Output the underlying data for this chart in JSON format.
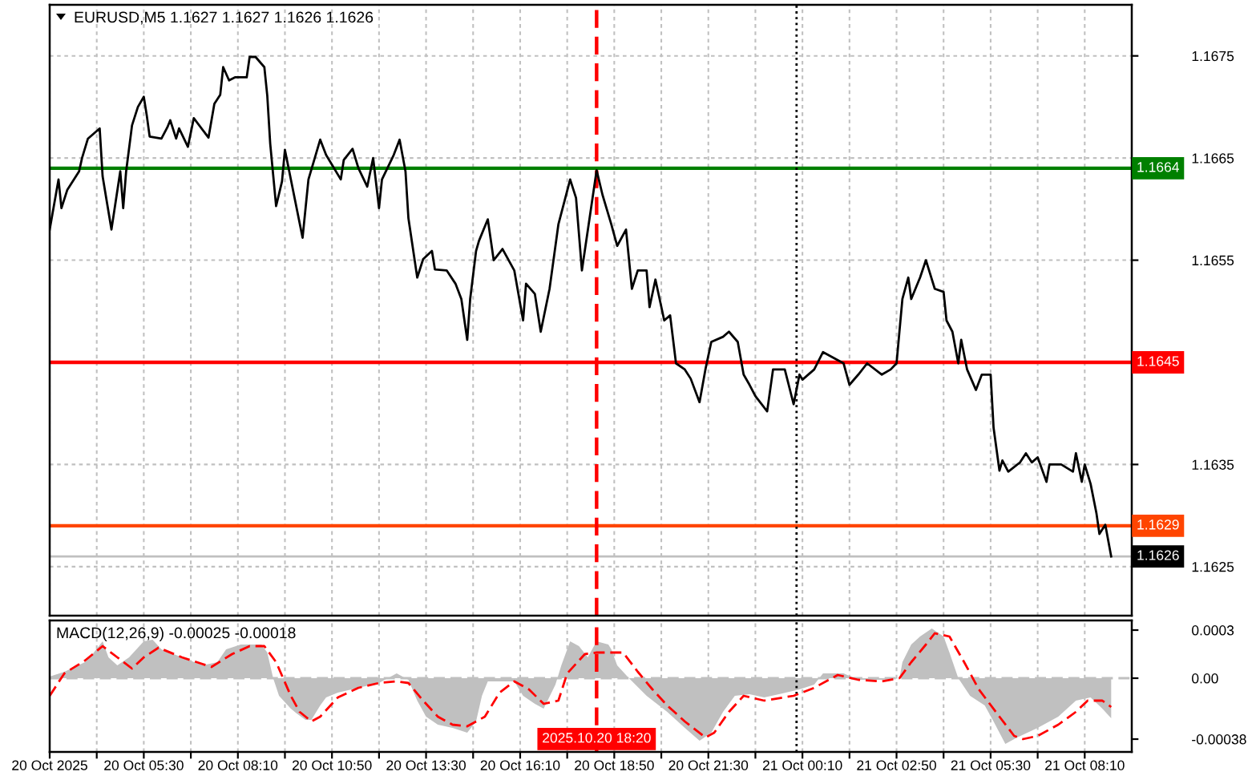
{
  "chart_data": [
    {
      "type": "line",
      "title": "EURUSD,M5 1.1627 1.1627 1.1626 1.1626",
      "x": [
        "2025-10-20T02:50",
        "2025-10-20T03:05",
        "2025-10-20T03:10",
        "2025-10-20T03:20",
        "2025-10-20T03:40",
        "2025-10-20T03:45",
        "2025-10-20T03:55",
        "2025-10-20T04:15",
        "2025-10-20T04:20",
        "2025-10-20T04:35",
        "2025-10-20T04:50",
        "2025-10-20T04:55",
        "2025-10-20T05:00",
        "2025-10-20T05:10",
        "2025-10-20T05:20",
        "2025-10-20T05:30",
        "2025-10-20T05:35",
        "2025-10-20T05:40",
        "2025-10-20T06:00",
        "2025-10-20T06:10",
        "2025-10-20T06:15",
        "2025-10-20T06:25",
        "2025-10-20T06:30",
        "2025-10-20T06:45",
        "2025-10-20T06:55",
        "2025-10-20T07:20",
        "2025-10-20T07:30",
        "2025-10-20T07:40",
        "2025-10-20T07:45",
        "2025-10-20T07:55",
        "2025-10-20T08:05",
        "2025-10-20T08:25",
        "2025-10-20T08:30",
        "2025-10-20T08:40",
        "2025-10-20T08:55",
        "2025-10-20T09:00",
        "2025-10-20T09:05",
        "2025-10-20T09:15",
        "2025-10-20T09:25",
        "2025-10-20T09:30",
        "2025-10-20T10:00",
        "2025-10-20T10:10",
        "2025-10-20T10:30",
        "2025-10-20T10:40",
        "2025-10-20T11:05",
        "2025-10-20T11:10",
        "2025-10-20T11:25",
        "2025-10-20T11:35",
        "2025-10-20T11:50",
        "2025-10-20T12:00",
        "2025-10-20T12:10",
        "2025-10-20T12:15",
        "2025-10-20T12:35",
        "2025-10-20T12:45",
        "2025-10-20T12:55",
        "2025-10-20T13:00",
        "2025-10-20T13:15",
        "2025-10-20T13:25",
        "2025-10-20T13:40",
        "2025-10-20T13:45",
        "2025-10-20T14:05",
        "2025-10-20T14:20",
        "2025-10-20T14:30",
        "2025-10-20T14:40",
        "2025-10-20T14:45",
        "2025-10-20T14:55",
        "2025-10-20T15:00",
        "2025-10-20T15:15",
        "2025-10-20T15:25",
        "2025-10-20T15:40",
        "2025-10-20T16:00",
        "2025-10-20T16:15",
        "2025-10-20T16:20",
        "2025-10-20T16:35",
        "2025-10-20T16:45",
        "2025-10-20T17:00",
        "2025-10-20T17:15",
        "2025-10-20T17:35",
        "2025-10-20T17:45",
        "2025-10-20T17:55",
        "2025-10-20T18:20",
        "2025-10-20T18:30",
        "2025-10-20T18:45",
        "2025-10-20T18:55",
        "2025-10-20T19:10",
        "2025-10-20T19:20",
        "2025-10-20T19:30",
        "2025-10-20T19:45",
        "2025-10-20T19:50",
        "2025-10-20T20:00",
        "2025-10-20T20:15",
        "2025-10-20T20:25",
        "2025-10-20T20:35",
        "2025-10-20T20:50",
        "2025-10-20T21:00",
        "2025-10-20T21:15",
        "2025-10-20T21:25",
        "2025-10-20T21:35",
        "2025-10-20T21:55",
        "2025-10-20T22:05",
        "2025-10-20T22:20",
        "2025-10-20T22:30",
        "2025-10-20T22:40",
        "2025-10-20T22:50",
        "2025-10-20T23:10",
        "2025-10-20T23:20",
        "2025-10-20T23:40",
        "2025-10-20T23:55",
        "2025-10-21T00:05",
        "2025-10-21T00:10",
        "2025-10-21T00:30",
        "2025-10-21T00:45",
        "2025-10-21T01:20",
        "2025-10-21T01:30",
        "2025-10-21T01:45",
        "2025-10-21T02:00",
        "2025-10-21T02:25",
        "2025-10-21T02:40",
        "2025-10-21T02:50",
        "2025-10-21T03:00",
        "2025-10-21T03:10",
        "2025-10-21T03:15",
        "2025-10-21T03:30",
        "2025-10-21T03:40",
        "2025-10-21T03:55",
        "2025-10-21T04:10",
        "2025-10-21T04:15",
        "2025-10-21T04:25",
        "2025-10-21T04:35",
        "2025-10-21T04:40",
        "2025-10-21T04:50",
        "2025-10-21T05:05",
        "2025-10-21T05:15",
        "2025-10-21T05:30",
        "2025-10-21T05:35",
        "2025-10-21T05:45",
        "2025-10-21T05:50",
        "2025-10-21T06:00",
        "2025-10-21T06:20",
        "2025-10-21T06:30",
        "2025-10-21T06:40",
        "2025-10-21T06:50",
        "2025-10-21T07:05",
        "2025-10-21T07:10",
        "2025-10-21T07:30",
        "2025-10-21T07:50",
        "2025-10-21T07:55",
        "2025-10-21T08:05",
        "2025-10-21T08:10",
        "2025-10-21T08:20",
        "2025-10-21T08:30",
        "2025-10-21T08:35",
        "2025-10-21T08:45",
        "2025-10-21T08:55"
      ],
      "series": [
        {
          "color": "#000000",
          "values": [
            1.1658,
            1.16629,
            1.16601,
            1.16619,
            1.16637,
            1.1665,
            1.16669,
            1.16679,
            1.16632,
            1.1658,
            1.16637,
            1.16601,
            1.16637,
            1.16682,
            1.167,
            1.1671,
            1.16692,
            1.16671,
            1.16669,
            1.1668,
            1.16687,
            1.16669,
            1.16679,
            1.16661,
            1.16689,
            1.1667,
            1.16703,
            1.16712,
            1.16739,
            1.16726,
            1.16729,
            1.16729,
            1.16749,
            1.16749,
            1.16739,
            1.16711,
            1.16664,
            1.16603,
            1.16627,
            1.16658,
            1.16572,
            1.16629,
            1.16668,
            1.16653,
            1.16629,
            1.16648,
            1.16659,
            1.1664,
            1.16622,
            1.1665,
            1.16601,
            1.16629,
            1.16653,
            1.16668,
            1.16637,
            1.16591,
            1.16533,
            1.16551,
            1.16559,
            1.16541,
            1.1654,
            1.16527,
            1.16512,
            1.16472,
            1.16512,
            1.16559,
            1.16569,
            1.1659,
            1.1655,
            1.16561,
            1.1654,
            1.16491,
            1.16527,
            1.16517,
            1.1648,
            1.16522,
            1.16585,
            1.16629,
            1.16611,
            1.1654,
            1.16638,
            1.16614,
            1.16585,
            1.16564,
            1.1658,
            1.16522,
            1.1654,
            1.1654,
            1.16504,
            1.16531,
            1.16491,
            1.16496,
            1.16449,
            1.16443,
            1.16434,
            1.16411,
            1.16443,
            1.1647,
            1.16475,
            1.1648,
            1.1647,
            1.16438,
            1.16428,
            1.16417,
            1.16402,
            1.16443,
            1.16443,
            1.16409,
            1.16438,
            1.16433,
            1.16443,
            1.1646,
            1.16449,
            1.16428,
            1.16438,
            1.16449,
            1.16438,
            1.16443,
            1.16449,
            1.16512,
            1.16533,
            1.16512,
            1.16533,
            1.1655,
            1.16522,
            1.16519,
            1.16491,
            1.1648,
            1.16449,
            1.16472,
            1.16443,
            1.16423,
            1.16438,
            1.16438,
            1.16386,
            1.16344,
            1.16354,
            1.16343,
            1.16352,
            1.16361,
            1.16352,
            1.16357,
            1.16333,
            1.1635,
            1.1635,
            1.16343,
            1.16361,
            1.16333,
            1.1635,
            1.16331,
            1.16302,
            1.16282,
            1.16291,
            1.1626
          ]
        }
      ],
      "xlim": [
        "2025-10-20T02:50",
        "2025-10-21T09:30"
      ],
      "xticks": [
        "2025-10-20T02:50",
        "2025-10-20T04:10",
        "2025-10-20T05:30",
        "2025-10-20T06:50",
        "2025-10-20T08:10",
        "2025-10-20T09:30",
        "2025-10-20T10:50",
        "2025-10-20T12:10",
        "2025-10-20T13:30",
        "2025-10-20T14:50",
        "2025-10-20T16:10",
        "2025-10-20T17:30",
        "2025-10-20T18:50",
        "2025-10-20T20:10",
        "2025-10-20T21:30",
        "2025-10-20T22:50",
        "2025-10-21T00:10",
        "2025-10-21T01:30",
        "2025-10-21T02:50",
        "2025-10-21T04:10",
        "2025-10-21T05:30",
        "2025-10-21T06:50",
        "2025-10-21T08:10"
      ],
      "ylim": [
        1.16202,
        1.168
      ],
      "yticks": [
        1.1675,
        1.1665,
        1.1655,
        {
          "value": 1.1645,
          "label": null
        },
        1.1635,
        1.1625
      ],
      "grid": true,
      "tick_labels": "y",
      "ref_lines": [
        {
          "axis": "y",
          "value": 1.1664,
          "label": "1.1664",
          "color": "#008000"
        },
        {
          "axis": "y",
          "value": 1.1645,
          "label": "1.1645",
          "color": "#ff0000"
        },
        {
          "axis": "y",
          "value": 1.1629,
          "label": "1.1629",
          "color": "#ff4500"
        },
        {
          "axis": "y",
          "value": 1.1626,
          "label": "1.1626",
          "color": "#c0c0c0"
        },
        {
          "axis": "x",
          "value": "2025-10-20T18:20",
          "color": "#ff0000",
          "line_style": "dashed"
        },
        {
          "axis": "x",
          "value": "2025-10-21T00:00",
          "color": "#000000",
          "line_style": "dotted"
        }
      ]
    },
    {
      "type": "area",
      "title": "MACD(12,26,9) -0.00025 -0.00018",
      "series": [
        {
          "color": "#c0c0c0",
          "x": [
            "2025-10-20T02:50",
            "2025-10-20T03:15",
            "2025-10-20T03:50",
            "2025-10-20T04:05",
            "2025-10-20T04:20",
            "2025-10-20T04:30",
            "2025-10-20T04:45",
            "2025-10-20T05:05",
            "2025-10-20T05:30",
            "2025-10-20T05:45",
            "2025-10-20T06:00",
            "2025-10-20T06:35",
            "2025-10-20T07:10",
            "2025-10-20T07:35",
            "2025-10-20T07:50",
            "2025-10-20T08:15",
            "2025-10-20T08:50",
            "2025-10-20T09:00",
            "2025-10-20T09:10",
            "2025-10-20T09:20",
            "2025-10-20T09:40",
            "2025-10-20T09:50",
            "2025-10-20T10:05",
            "2025-10-20T10:15",
            "2025-10-20T10:30",
            "2025-10-20T10:40",
            "2025-10-20T11:00",
            "2025-10-20T11:35",
            "2025-10-20T12:10",
            "2025-10-20T12:25",
            "2025-10-20T12:40",
            "2025-10-20T13:00",
            "2025-10-20T13:15",
            "2025-10-20T13:30",
            "2025-10-20T13:50",
            "2025-10-20T14:15",
            "2025-10-20T14:40",
            "2025-10-20T14:55",
            "2025-10-20T15:05",
            "2025-10-20T15:15",
            "2025-10-20T15:45",
            "2025-10-20T16:00",
            "2025-10-20T16:15",
            "2025-10-20T16:35",
            "2025-10-20T16:50",
            "2025-10-20T17:10",
            "2025-10-20T17:20",
            "2025-10-20T17:35",
            "2025-10-20T17:50",
            "2025-10-20T18:05",
            "2025-10-20T18:20",
            "2025-10-20T18:40",
            "2025-10-20T18:45",
            "2025-10-20T18:55",
            "2025-10-20T19:15",
            "2025-10-20T19:45",
            "2025-10-20T20:20",
            "2025-10-20T20:50",
            "2025-10-20T21:15",
            "2025-10-20T21:35",
            "2025-10-20T21:55",
            "2025-10-20T22:15",
            "2025-10-20T22:40",
            "2025-10-20T23:05",
            "2025-10-20T23:30",
            "2025-10-21T00:05",
            "2025-10-21T00:30",
            "2025-10-21T00:45",
            "2025-10-21T01:20",
            "2025-10-21T01:45",
            "2025-10-21T02:25",
            "2025-10-21T02:55",
            "2025-10-21T03:00",
            "2025-10-21T03:15",
            "2025-10-21T03:30",
            "2025-10-21T03:50",
            "2025-10-21T04:10",
            "2025-10-21T04:20",
            "2025-10-21T04:35",
            "2025-10-21T04:55",
            "2025-10-21T05:20",
            "2025-10-21T05:35",
            "2025-10-21T05:55",
            "2025-10-21T06:15",
            "2025-10-21T06:50",
            "2025-10-21T07:25",
            "2025-10-21T07:55",
            "2025-10-21T08:20",
            "2025-10-21T08:40",
            "2025-10-21T08:55"
          ],
          "values": [
            1e-05,
            4e-05,
            0.0001,
            0.00016,
            0.00023,
            0.00013,
            8e-05,
            0.00013,
            0.00023,
            0.00024,
            0.00018,
            0.00013,
            8e-05,
            0.0001,
            0.00018,
            0.00021,
            0.00021,
            0.00016,
            0,
            -0.00011,
            -0.00019,
            -0.00022,
            -0.00026,
            -0.00026,
            -0.00017,
            -0.00012,
            -9e-05,
            -6e-05,
            -3e-05,
            0,
            3e-05,
            -1e-05,
            -0.00014,
            -0.00024,
            -0.00029,
            -0.00031,
            -0.00034,
            -0.00027,
            -0.00011,
            -2e-05,
            -2e-05,
            -2e-05,
            -0.00011,
            -0.00016,
            -0.00019,
            -4e-05,
            8e-05,
            0.00023,
            0.0002,
            0.00013,
            0.00023,
            0.00021,
            0.00018,
            8e-05,
            0,
            -0.00011,
            -0.00021,
            -0.00031,
            -0.00039,
            -0.00034,
            -0.00021,
            -0.00011,
            -0.0001,
            -0.00012,
            -0.0001,
            -7e-05,
            -4e-05,
            3e-05,
            3e-05,
            -1e-05,
            -1e-05,
            0,
            0.0001,
            0.00021,
            0.00026,
            0.00031,
            0.00026,
            0.00016,
            0,
            -0.00011,
            -0.00017,
            -0.00027,
            -0.00041,
            -0.00037,
            -0.00031,
            -0.00024,
            -0.00014,
            -0.00012,
            -0.00019,
            -0.00025
          ]
        },
        {
          "type": "line",
          "color": "#ff0000",
          "line_style": "dashed",
          "x": [
            "2025-10-20T02:50",
            "2025-10-20T03:15",
            "2025-10-20T03:50",
            "2025-10-20T04:20",
            "2025-10-20T04:45",
            "2025-10-20T05:10",
            "2025-10-20T05:30",
            "2025-10-20T05:55",
            "2025-10-20T06:35",
            "2025-10-20T07:25",
            "2025-10-20T08:00",
            "2025-10-20T08:30",
            "2025-10-20T08:55",
            "2025-10-20T09:15",
            "2025-10-20T09:40",
            "2025-10-20T09:55",
            "2025-10-20T10:15",
            "2025-10-20T10:30",
            "2025-10-20T11:00",
            "2025-10-20T11:35",
            "2025-10-20T12:10",
            "2025-10-20T12:40",
            "2025-10-20T13:00",
            "2025-10-20T13:25",
            "2025-10-20T13:50",
            "2025-10-20T14:15",
            "2025-10-20T14:40",
            "2025-10-20T15:10",
            "2025-10-20T15:35",
            "2025-10-20T16:00",
            "2025-10-20T16:25",
            "2025-10-20T16:50",
            "2025-10-20T17:15",
            "2025-10-20T17:30",
            "2025-10-20T18:00",
            "2025-10-20T18:20",
            "2025-10-20T19:05",
            "2025-10-20T19:30",
            "2025-10-20T19:55",
            "2025-10-20T20:20",
            "2025-10-20T20:50",
            "2025-10-20T21:25",
            "2025-10-20T21:40",
            "2025-10-20T22:05",
            "2025-10-20T22:30",
            "2025-10-20T23:05",
            "2025-10-20T23:55",
            "2025-10-21T00:30",
            "2025-10-21T01:10",
            "2025-10-21T01:45",
            "2025-10-21T02:25",
            "2025-10-21T02:55",
            "2025-10-21T03:15",
            "2025-10-21T03:40",
            "2025-10-21T03:55",
            "2025-10-21T04:20",
            "2025-10-21T04:45",
            "2025-10-21T05:10",
            "2025-10-21T05:45",
            "2025-10-21T06:10",
            "2025-10-21T06:25",
            "2025-10-21T06:50",
            "2025-10-21T07:25",
            "2025-10-21T07:55",
            "2025-10-21T08:15",
            "2025-10-21T08:40",
            "2025-10-21T08:55"
          ],
          "values": [
            -0.00011,
            3e-05,
            0.00011,
            0.0002,
            0.00013,
            6e-05,
            0.00013,
            0.00019,
            0.00013,
            7e-05,
            0.00015,
            0.0002,
            0.0002,
            0.0001,
            -0.00011,
            -0.00021,
            -0.00027,
            -0.00024,
            -0.00012,
            -6e-05,
            -3e-05,
            -2e-05,
            -3e-05,
            -0.00014,
            -0.00024,
            -0.00029,
            -0.0003,
            -0.00024,
            -9e-05,
            -2e-05,
            -7e-05,
            -0.00016,
            -0.00014,
            3e-05,
            0.00015,
            0.00016,
            0.00016,
            4e-05,
            -7e-05,
            -0.00017,
            -0.00027,
            -0.00037,
            -0.00034,
            -0.00021,
            -0.00011,
            -0.00014,
            -0.00011,
            -6e-05,
            2e-05,
            -1e-05,
            -2e-05,
            0,
            0.0001,
            0.00021,
            0.00028,
            0.00026,
            0.0001,
            -7e-05,
            -0.00024,
            -0.00036,
            -0.00038,
            -0.00036,
            -0.00029,
            -0.00021,
            -0.00014,
            -0.00014,
            -0.00018
          ]
        }
      ],
      "xlim": [
        "2025-10-20T02:50",
        "2025-10-21T09:30"
      ],
      "xticks": [
        {
          "value": "2025-10-20T02:50",
          "label": "20 Oct 2025"
        },
        {
          "value": "2025-10-20T04:10",
          "label": null
        },
        {
          "value": "2025-10-20T05:30",
          "label": "20 Oct 05:30"
        },
        {
          "value": "2025-10-20T06:50",
          "label": null
        },
        {
          "value": "2025-10-20T08:10",
          "label": "20 Oct 08:10"
        },
        {
          "value": "2025-10-20T09:30",
          "label": null
        },
        {
          "value": "2025-10-20T10:50",
          "label": "20 Oct 10:50"
        },
        {
          "value": "2025-10-20T12:10",
          "label": null
        },
        {
          "value": "2025-10-20T13:30",
          "label": "20 Oct 13:30"
        },
        {
          "value": "2025-10-20T14:50",
          "label": null
        },
        {
          "value": "2025-10-20T16:10",
          "label": "20 Oct 16:10"
        },
        {
          "value": "2025-10-20T17:30",
          "label": null
        },
        {
          "value": "2025-10-20T18:50",
          "label": "20 Oct 18:50"
        },
        {
          "value": "2025-10-20T20:10",
          "label": null
        },
        {
          "value": "2025-10-20T21:30",
          "label": "20 Oct 21:30"
        },
        {
          "value": "2025-10-20T22:50",
          "label": null
        },
        {
          "value": "2025-10-21T00:10",
          "label": "21 Oct 00:10"
        },
        {
          "value": "2025-10-21T01:30",
          "label": null
        },
        {
          "value": "2025-10-21T02:50",
          "label": "21 Oct 02:50"
        },
        {
          "value": "2025-10-21T04:10",
          "label": null
        },
        {
          "value": "2025-10-21T05:30",
          "label": "21 Oct 05:30"
        },
        {
          "value": "2025-10-21T06:50",
          "label": null
        },
        {
          "value": "2025-10-21T08:10",
          "label": "21 Oct 08:10"
        }
      ],
      "ylim": [
        -0.00046,
        0.00036
      ],
      "yticks": [
        0.0003,
        {
          "value": 0,
          "label": "0.00"
        },
        -0.00038
      ],
      "grid": "x",
      "ref_lines": [
        {
          "axis": "y",
          "value": 0,
          "color": "#c0c0c0",
          "line_style": "dashed"
        },
        {
          "axis": "x",
          "value": "2025-10-20T18:20",
          "label": "2025.10.20 18:20",
          "color": "#ff0000",
          "line_style": "dashed"
        },
        {
          "axis": "x",
          "value": "2025-10-21T00:00",
          "color": "#000000",
          "line_style": "dotted"
        }
      ]
    }
  ]
}
